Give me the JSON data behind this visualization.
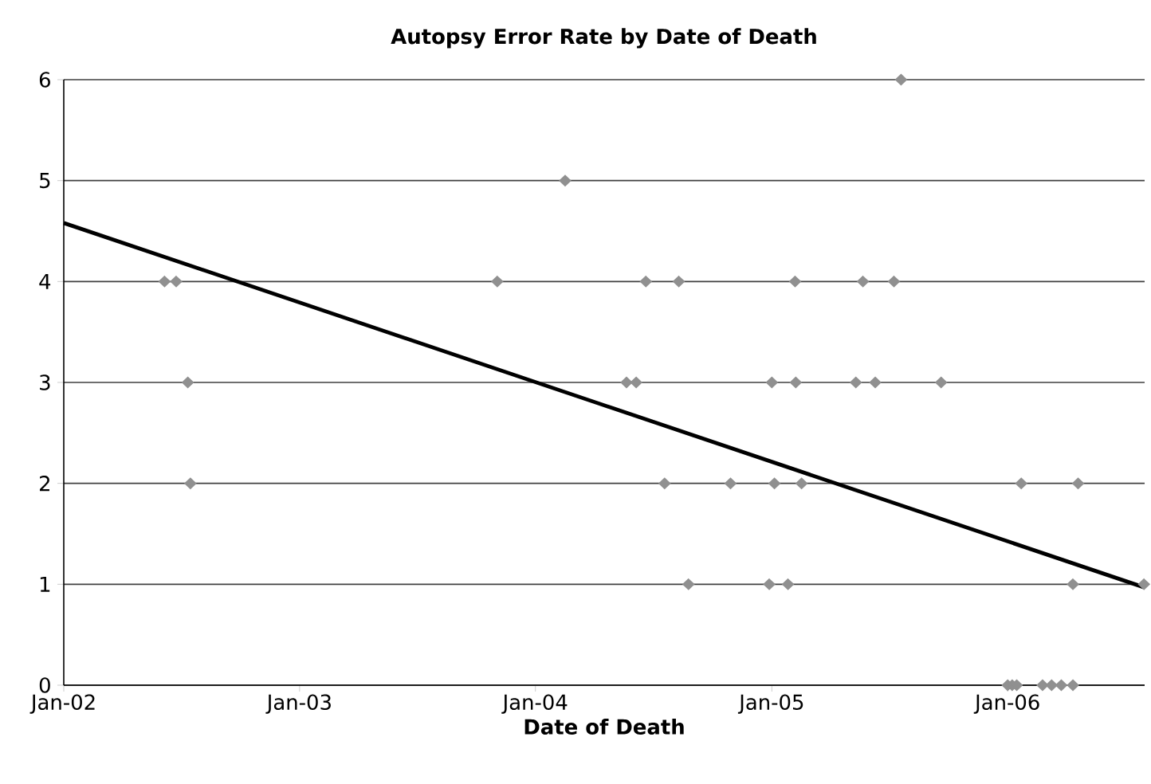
{
  "chart_data": {
    "type": "scatter",
    "title": "Autopsy Error Rate by Date of Death",
    "xlabel": "Date of Death",
    "xlim": [
      "2002-01-01",
      "2006-08-01"
    ],
    "xticks": [
      {
        "value": "2002-01-01",
        "label": "Jan-02"
      },
      {
        "value": "2003-01-01",
        "label": "Jan-03"
      },
      {
        "value": "2004-01-01",
        "label": "Jan-04"
      },
      {
        "value": "2005-01-01",
        "label": "Jan-05"
      },
      {
        "value": "2006-01-01",
        "label": "Jan-06"
      }
    ],
    "ylim": [
      0,
      6
    ],
    "yticks": [
      0,
      1,
      2,
      3,
      4,
      5,
      6
    ],
    "grid": "y",
    "marker": "diamond",
    "series": [
      {
        "color": "#909090",
        "x": [
          "2002-06-06",
          "2002-06-24",
          "2002-07-12",
          "2002-07-16",
          "2003-11-03",
          "2004-02-16",
          "2005-07-20",
          "2004-06-20",
          "2004-08-10",
          "2005-02-06",
          "2005-05-22",
          "2005-07-09",
          "2004-05-21",
          "2004-06-05",
          "2005-01-01",
          "2005-02-07",
          "2005-05-11",
          "2005-06-10",
          "2005-09-20",
          "2004-07-19",
          "2004-10-29",
          "2005-01-05",
          "2005-02-16",
          "2006-01-22",
          "2006-04-20",
          "2004-08-25",
          "2004-12-28",
          "2005-01-26",
          "2006-04-12",
          "2006-07-31",
          "2006-01-01",
          "2006-01-08",
          "2006-01-15",
          "2006-02-24",
          "2006-03-10",
          "2006-03-25",
          "2006-04-12"
        ],
        "values": [
          4,
          4,
          3,
          2,
          4,
          5,
          6,
          4,
          4,
          4,
          4,
          4,
          3,
          3,
          3,
          3,
          3,
          3,
          3,
          2,
          2,
          2,
          2,
          2,
          2,
          1,
          1,
          1,
          1,
          1,
          0,
          0,
          0,
          0,
          0,
          0,
          0
        ]
      },
      {
        "type": "line",
        "color": "#000000",
        "marker": "none",
        "x": [
          "2002-01-01",
          "2006-07-31"
        ],
        "values": [
          4.58,
          0.97
        ]
      }
    ]
  }
}
